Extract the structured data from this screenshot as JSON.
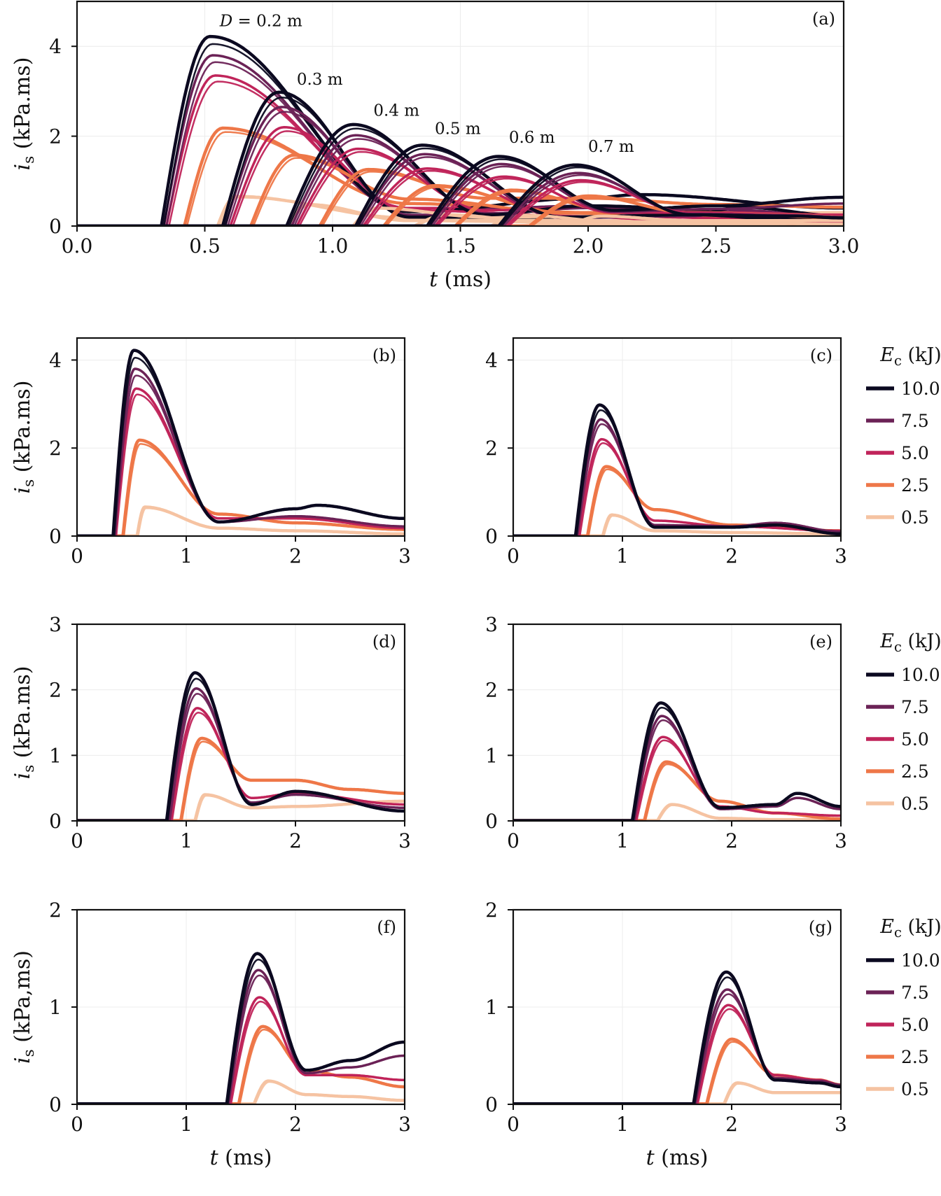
{
  "figure": {
    "energy_colors": {
      "10.0": "#0b0920",
      "7.5": "#6b2256",
      "5.0": "#c0245a",
      "2.5": "#ee7748",
      "0.5": "#f5c3a2"
    }
  },
  "chart_data": [
    {
      "panel": "(a)",
      "type": "line",
      "xlabel_italic": "t",
      "xlabel_unit": " (ms)",
      "ylabel_italic": "i",
      "ylabel_sub": "s",
      "ylabel_unit": " (kPa.ms)",
      "xlim": [
        0,
        3
      ],
      "ylim": [
        0,
        5
      ],
      "xticks": [
        "0.0",
        "0.5",
        "1.0",
        "1.5",
        "2.0",
        "2.5",
        "3.0"
      ],
      "yticks": [
        "0",
        "2",
        "4"
      ],
      "grid": true,
      "annotations": [
        {
          "label_italic": "D",
          "label": " = 0.2 m",
          "x": 0.72,
          "y": 4.45
        },
        {
          "label": "0.3 m",
          "x": 0.95,
          "y": 3.15
        },
        {
          "label": "0.4 m",
          "x": 1.25,
          "y": 2.45
        },
        {
          "label": "0.5 m",
          "x": 1.49,
          "y": 2.05
        },
        {
          "label": "0.6 m",
          "x": 1.78,
          "y": 1.85
        },
        {
          "label": "0.7 m",
          "x": 2.09,
          "y": 1.65
        }
      ]
    },
    {
      "panel": "(b)",
      "type": "line",
      "distance_m": 0.2,
      "xlim": [
        0,
        3
      ],
      "ylim": [
        0,
        4.5
      ],
      "xticks": [
        "0",
        "1",
        "2",
        "3"
      ],
      "yticks": [
        "0",
        "2",
        "4"
      ],
      "ylabel_italic": "i",
      "ylabel_sub": "s",
      "ylabel_unit": " (kPa.ms)",
      "series": [
        {
          "energy_kJ": "10.0",
          "onset": 0.33,
          "peak_t": 0.52,
          "peak": 4.22,
          "tail": [
            [
              1.3,
              0.32
            ],
            [
              2.0,
              0.62
            ],
            [
              2.2,
              0.7
            ],
            [
              3.0,
              0.4
            ]
          ]
        },
        {
          "energy_kJ": "7.5",
          "onset": 0.34,
          "peak_t": 0.53,
          "peak": 3.8,
          "tail": [
            [
              1.3,
              0.32
            ],
            [
              2.0,
              0.45
            ],
            [
              3.0,
              0.22
            ]
          ]
        },
        {
          "energy_kJ": "5.0",
          "onset": 0.35,
          "peak_t": 0.54,
          "peak": 3.35,
          "tail": [
            [
              1.3,
              0.4
            ],
            [
              2.0,
              0.4
            ],
            [
              3.0,
              0.18
            ]
          ]
        },
        {
          "energy_kJ": "2.5",
          "onset": 0.42,
          "peak_t": 0.57,
          "peak": 2.18,
          "tail": [
            [
              1.3,
              0.5
            ],
            [
              2.0,
              0.3
            ],
            [
              3.0,
              0.15
            ]
          ]
        },
        {
          "energy_kJ": "0.5",
          "onset": 0.55,
          "peak_t": 0.62,
          "peak": 0.66,
          "tail": [
            [
              1.3,
              0.18
            ],
            [
              2.0,
              0.12
            ],
            [
              3.0,
              0.05
            ]
          ]
        }
      ]
    },
    {
      "panel": "(c)",
      "type": "line",
      "distance_m": 0.3,
      "xlim": [
        0,
        3
      ],
      "ylim": [
        0,
        4.5
      ],
      "xticks": [
        "0",
        "1",
        "2",
        "3"
      ],
      "yticks": [
        "0",
        "2",
        "4"
      ],
      "legend_title_italic": "E",
      "legend_title_sub": "c",
      "legend_title_unit": "  (kJ)",
      "legend": [
        "10.0",
        "7.5",
        "5.0",
        "2.5",
        "0.5"
      ],
      "series": [
        {
          "energy_kJ": "10.0",
          "onset": 0.57,
          "peak_t": 0.79,
          "peak": 2.98,
          "tail": [
            [
              1.3,
              0.2
            ],
            [
              2.0,
              0.2
            ],
            [
              2.4,
              0.25
            ],
            [
              3.0,
              0.05
            ]
          ]
        },
        {
          "energy_kJ": "7.5",
          "onset": 0.58,
          "peak_t": 0.8,
          "peak": 2.65,
          "tail": [
            [
              1.3,
              0.25
            ],
            [
              2.0,
              0.22
            ],
            [
              2.4,
              0.3
            ],
            [
              3.0,
              0.1
            ]
          ]
        },
        {
          "energy_kJ": "5.0",
          "onset": 0.6,
          "peak_t": 0.81,
          "peak": 2.2,
          "tail": [
            [
              1.3,
              0.35
            ],
            [
              2.0,
              0.22
            ],
            [
              3.0,
              0.12
            ]
          ]
        },
        {
          "energy_kJ": "2.5",
          "onset": 0.68,
          "peak_t": 0.85,
          "peak": 1.58,
          "tail": [
            [
              1.3,
              0.6
            ],
            [
              2.0,
              0.25
            ],
            [
              3.0,
              0.12
            ]
          ]
        },
        {
          "energy_kJ": "0.5",
          "onset": 0.82,
          "peak_t": 0.9,
          "peak": 0.48,
          "tail": [
            [
              1.3,
              0.12
            ],
            [
              2.0,
              0.08
            ],
            [
              3.0,
              0.05
            ]
          ]
        }
      ]
    },
    {
      "panel": "(d)",
      "type": "line",
      "distance_m": 0.4,
      "xlim": [
        0,
        3
      ],
      "ylim": [
        0,
        3
      ],
      "xticks": [
        "0",
        "1",
        "2",
        "3"
      ],
      "yticks": [
        "0",
        "1",
        "2",
        "3"
      ],
      "ylabel_italic": "i",
      "ylabel_sub": "s",
      "ylabel_unit": " (kPa.ms)",
      "series": [
        {
          "energy_kJ": "10.0",
          "onset": 0.82,
          "peak_t": 1.08,
          "peak": 2.26,
          "tail": [
            [
              1.6,
              0.25
            ],
            [
              2.0,
              0.45
            ],
            [
              3.0,
              0.15
            ]
          ]
        },
        {
          "energy_kJ": "7.5",
          "onset": 0.84,
          "peak_t": 1.09,
          "peak": 2.02,
          "tail": [
            [
              1.6,
              0.28
            ],
            [
              2.0,
              0.4
            ],
            [
              3.0,
              0.2
            ]
          ]
        },
        {
          "energy_kJ": "5.0",
          "onset": 0.86,
          "peak_t": 1.1,
          "peak": 1.72,
          "tail": [
            [
              1.6,
              0.35
            ],
            [
              2.0,
              0.42
            ],
            [
              3.0,
              0.25
            ]
          ]
        },
        {
          "energy_kJ": "2.5",
          "onset": 0.95,
          "peak_t": 1.14,
          "peak": 1.26,
          "tail": [
            [
              1.6,
              0.62
            ],
            [
              2.0,
              0.62
            ],
            [
              2.5,
              0.48
            ],
            [
              3.0,
              0.42
            ]
          ]
        },
        {
          "energy_kJ": "0.5",
          "onset": 1.08,
          "peak_t": 1.17,
          "peak": 0.4,
          "tail": [
            [
              1.6,
              0.2
            ],
            [
              2.0,
              0.22
            ],
            [
              3.0,
              0.3
            ]
          ]
        }
      ]
    },
    {
      "panel": "(e)",
      "type": "line",
      "distance_m": 0.5,
      "xlim": [
        0,
        3
      ],
      "ylim": [
        0,
        3
      ],
      "xticks": [
        "0",
        "1",
        "2",
        "3"
      ],
      "yticks": [
        "0",
        "1",
        "2",
        "3"
      ],
      "legend_title_italic": "E",
      "legend_title_sub": "c",
      "legend_title_unit": "  (kJ)",
      "legend": [
        "10.0",
        "7.5",
        "5.0",
        "2.5",
        "0.5"
      ],
      "series": [
        {
          "energy_kJ": "10.0",
          "onset": 1.09,
          "peak_t": 1.35,
          "peak": 1.8,
          "tail": [
            [
              1.9,
              0.2
            ],
            [
              2.4,
              0.25
            ],
            [
              2.6,
              0.42
            ],
            [
              3.0,
              0.22
            ]
          ]
        },
        {
          "energy_kJ": "7.5",
          "onset": 1.1,
          "peak_t": 1.36,
          "peak": 1.6,
          "tail": [
            [
              1.9,
              0.18
            ],
            [
              2.4,
              0.22
            ],
            [
              2.6,
              0.35
            ],
            [
              3.0,
              0.18
            ]
          ]
        },
        {
          "energy_kJ": "5.0",
          "onset": 1.12,
          "peak_t": 1.37,
          "peak": 1.28,
          "tail": [
            [
              1.9,
              0.22
            ],
            [
              2.4,
              0.12
            ],
            [
              3.0,
              0.08
            ]
          ]
        },
        {
          "energy_kJ": "2.5",
          "onset": 1.2,
          "peak_t": 1.4,
          "peak": 0.9,
          "tail": [
            [
              1.9,
              0.3
            ],
            [
              2.4,
              0.12
            ],
            [
              3.0,
              0.03
            ]
          ]
        },
        {
          "energy_kJ": "0.5",
          "onset": 1.32,
          "peak_t": 1.45,
          "peak": 0.25,
          "tail": [
            [
              1.9,
              0.04
            ],
            [
              2.4,
              0.02
            ],
            [
              3.0,
              0.02
            ]
          ]
        }
      ]
    },
    {
      "panel": "(f)",
      "type": "line",
      "distance_m": 0.6,
      "xlim": [
        0,
        3
      ],
      "ylim": [
        0,
        2
      ],
      "xticks": [
        "0",
        "1",
        "2",
        "3"
      ],
      "yticks": [
        "0",
        "1",
        "2"
      ],
      "ylabel_italic": "i",
      "ylabel_sub": "s",
      "ylabel_unit": " (kPa,ms)",
      "xlabel_italic": "t",
      "xlabel_unit": " (ms)",
      "series": [
        {
          "energy_kJ": "10.0",
          "onset": 1.37,
          "peak_t": 1.65,
          "peak": 1.55,
          "tail": [
            [
              2.1,
              0.35
            ],
            [
              2.5,
              0.45
            ],
            [
              3.0,
              0.64
            ]
          ]
        },
        {
          "energy_kJ": "7.5",
          "onset": 1.38,
          "peak_t": 1.66,
          "peak": 1.38,
          "tail": [
            [
              2.1,
              0.32
            ],
            [
              2.5,
              0.38
            ],
            [
              3.0,
              0.5
            ]
          ]
        },
        {
          "energy_kJ": "5.0",
          "onset": 1.4,
          "peak_t": 1.67,
          "peak": 1.1,
          "tail": [
            [
              2.1,
              0.3
            ],
            [
              2.5,
              0.3
            ],
            [
              3.0,
              0.25
            ]
          ]
        },
        {
          "energy_kJ": "2.5",
          "onset": 1.48,
          "peak_t": 1.7,
          "peak": 0.8,
          "tail": [
            [
              2.1,
              0.35
            ],
            [
              2.5,
              0.28
            ],
            [
              3.0,
              0.18
            ]
          ]
        },
        {
          "energy_kJ": "0.5",
          "onset": 1.62,
          "peak_t": 1.75,
          "peak": 0.24,
          "tail": [
            [
              2.1,
              0.1
            ],
            [
              2.5,
              0.08
            ],
            [
              3.0,
              0.04
            ]
          ]
        }
      ]
    },
    {
      "panel": "(g)",
      "type": "line",
      "distance_m": 0.7,
      "xlim": [
        0,
        3
      ],
      "ylim": [
        0,
        2
      ],
      "xticks": [
        "0",
        "1",
        "2",
        "3"
      ],
      "yticks": [
        "0",
        "1",
        "2"
      ],
      "xlabel_italic": "t",
      "xlabel_unit": " (ms)",
      "legend_title_italic": "E",
      "legend_title_sub": "c",
      "legend_title_unit": "  (kJ)",
      "legend": [
        "10.0",
        "7.5",
        "5.0",
        "2.5",
        "0.5"
      ],
      "series": [
        {
          "energy_kJ": "10.0",
          "onset": 1.65,
          "peak_t": 1.95,
          "peak": 1.36,
          "tail": [
            [
              2.4,
              0.25
            ],
            [
              2.8,
              0.22
            ],
            [
              3.0,
              0.18
            ]
          ]
        },
        {
          "energy_kJ": "7.5",
          "onset": 1.66,
          "peak_t": 1.96,
          "peak": 1.18,
          "tail": [
            [
              2.4,
              0.27
            ],
            [
              2.8,
              0.24
            ],
            [
              3.0,
              0.2
            ]
          ]
        },
        {
          "energy_kJ": "5.0",
          "onset": 1.68,
          "peak_t": 1.97,
          "peak": 1.02,
          "tail": [
            [
              2.4,
              0.3
            ],
            [
              2.8,
              0.25
            ],
            [
              3.0,
              0.2
            ]
          ]
        },
        {
          "energy_kJ": "2.5",
          "onset": 1.77,
          "peak_t": 2.0,
          "peak": 0.67,
          "tail": [
            [
              2.4,
              0.3
            ],
            [
              2.8,
              0.25
            ],
            [
              3.0,
              0.2
            ]
          ]
        },
        {
          "energy_kJ": "0.5",
          "onset": 1.93,
          "peak_t": 2.05,
          "peak": 0.22,
          "tail": [
            [
              2.4,
              0.12
            ],
            [
              2.8,
              0.12
            ],
            [
              3.0,
              0.12
            ]
          ]
        }
      ]
    }
  ]
}
